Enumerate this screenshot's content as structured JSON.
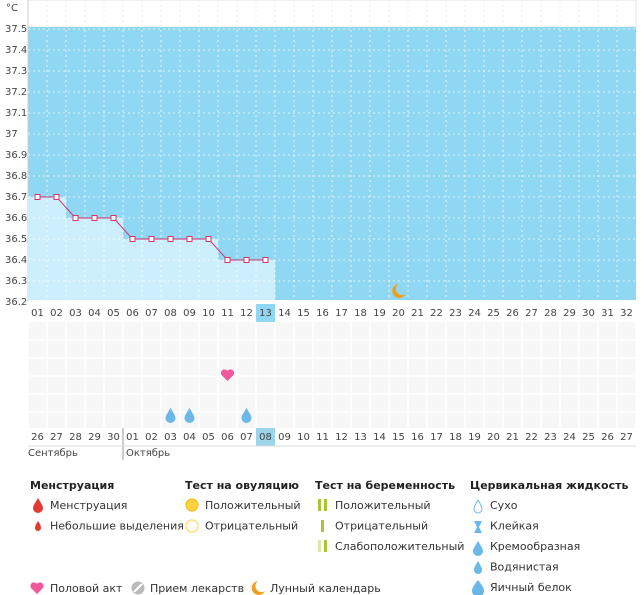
{
  "chart_data": {
    "type": "line",
    "y_unit": "°C",
    "x": [
      "01",
      "02",
      "03",
      "04",
      "05",
      "06",
      "07",
      "08",
      "09",
      "10",
      "11",
      "12",
      "13",
      "14",
      "15",
      "16",
      "17",
      "18",
      "19",
      "20",
      "21",
      "22",
      "23",
      "24",
      "25",
      "26",
      "27",
      "28",
      "29",
      "30",
      "31",
      "32"
    ],
    "series": [
      {
        "color": "#d6336c",
        "values": [
          36.7,
          36.7,
          36.6,
          36.6,
          36.6,
          36.5,
          36.5,
          36.5,
          36.5,
          36.5,
          36.4,
          36.4,
          36.4,
          null,
          null,
          null,
          null,
          null,
          null,
          null,
          null,
          null,
          null,
          null,
          null,
          null,
          null,
          null,
          null,
          null,
          null,
          null
        ]
      }
    ],
    "ylim": [
      36.2,
      37.5
    ],
    "yticks": [
      37.5,
      37.4,
      37.3,
      37.2,
      37.1,
      37,
      36.9,
      36.8,
      36.7,
      36.6,
      36.5,
      36.4,
      36.3,
      36.2
    ],
    "grid": true,
    "highlight_day": 13,
    "plot_color": "#8fd7f2",
    "fill_color": "#cdeefc",
    "weekend_color": "#e0245e",
    "dates": [
      {
        "label": "26",
        "weekend": true
      },
      {
        "label": "27",
        "weekend": true
      },
      {
        "label": "28",
        "weekend": false
      },
      {
        "label": "29",
        "weekend": false
      },
      {
        "label": "30",
        "weekend": false
      },
      {
        "label": "01",
        "weekend": false
      },
      {
        "label": "02",
        "weekend": false
      },
      {
        "label": "03",
        "weekend": true
      },
      {
        "label": "04",
        "weekend": true
      },
      {
        "label": "05",
        "weekend": false
      },
      {
        "label": "06",
        "weekend": false
      },
      {
        "label": "07",
        "weekend": false
      },
      {
        "label": "08",
        "weekend": false
      },
      {
        "label": "09",
        "weekend": false
      },
      {
        "label": "10",
        "weekend": true
      },
      {
        "label": "11",
        "weekend": true
      },
      {
        "label": "12",
        "weekend": false
      },
      {
        "label": "13",
        "weekend": false
      },
      {
        "label": "14",
        "weekend": false
      },
      {
        "label": "15",
        "weekend": false
      },
      {
        "label": "16",
        "weekend": false
      },
      {
        "label": "17",
        "weekend": true
      },
      {
        "label": "18",
        "weekend": true
      },
      {
        "label": "19",
        "weekend": false
      },
      {
        "label": "20",
        "weekend": false
      },
      {
        "label": "21",
        "weekend": false
      },
      {
        "label": "22",
        "weekend": false
      },
      {
        "label": "23",
        "weekend": false
      },
      {
        "label": "24",
        "weekend": true
      },
      {
        "label": "25",
        "weekend": true
      },
      {
        "label": "26",
        "weekend": false
      },
      {
        "label": "27",
        "weekend": false
      }
    ],
    "months": [
      "Сентябрь",
      "Октябрь"
    ],
    "markers": {
      "intercourse": [
        11
      ],
      "cervical_fluid": [
        8,
        9,
        12
      ],
      "moon": [
        20
      ]
    }
  },
  "legend": {
    "groups": [
      {
        "title": "Менструация",
        "items": [
          "Менструация",
          "Небольшие выделения"
        ]
      },
      {
        "title": "Тест на овуляцию",
        "items": [
          "Положительный",
          "Отрицательный"
        ]
      },
      {
        "title": "Тест на беременность",
        "items": [
          "Положительный",
          "Отрицательный",
          "Слабоположительный"
        ]
      },
      {
        "title": "Цервикальная жидкость",
        "items": [
          "Сухо",
          "Клейкая",
          "Кремообразная",
          "Водянистая",
          "Яичный белок"
        ]
      }
    ],
    "other": [
      "Половой акт",
      "Прием лекарств",
      "Лунный календарь"
    ]
  }
}
